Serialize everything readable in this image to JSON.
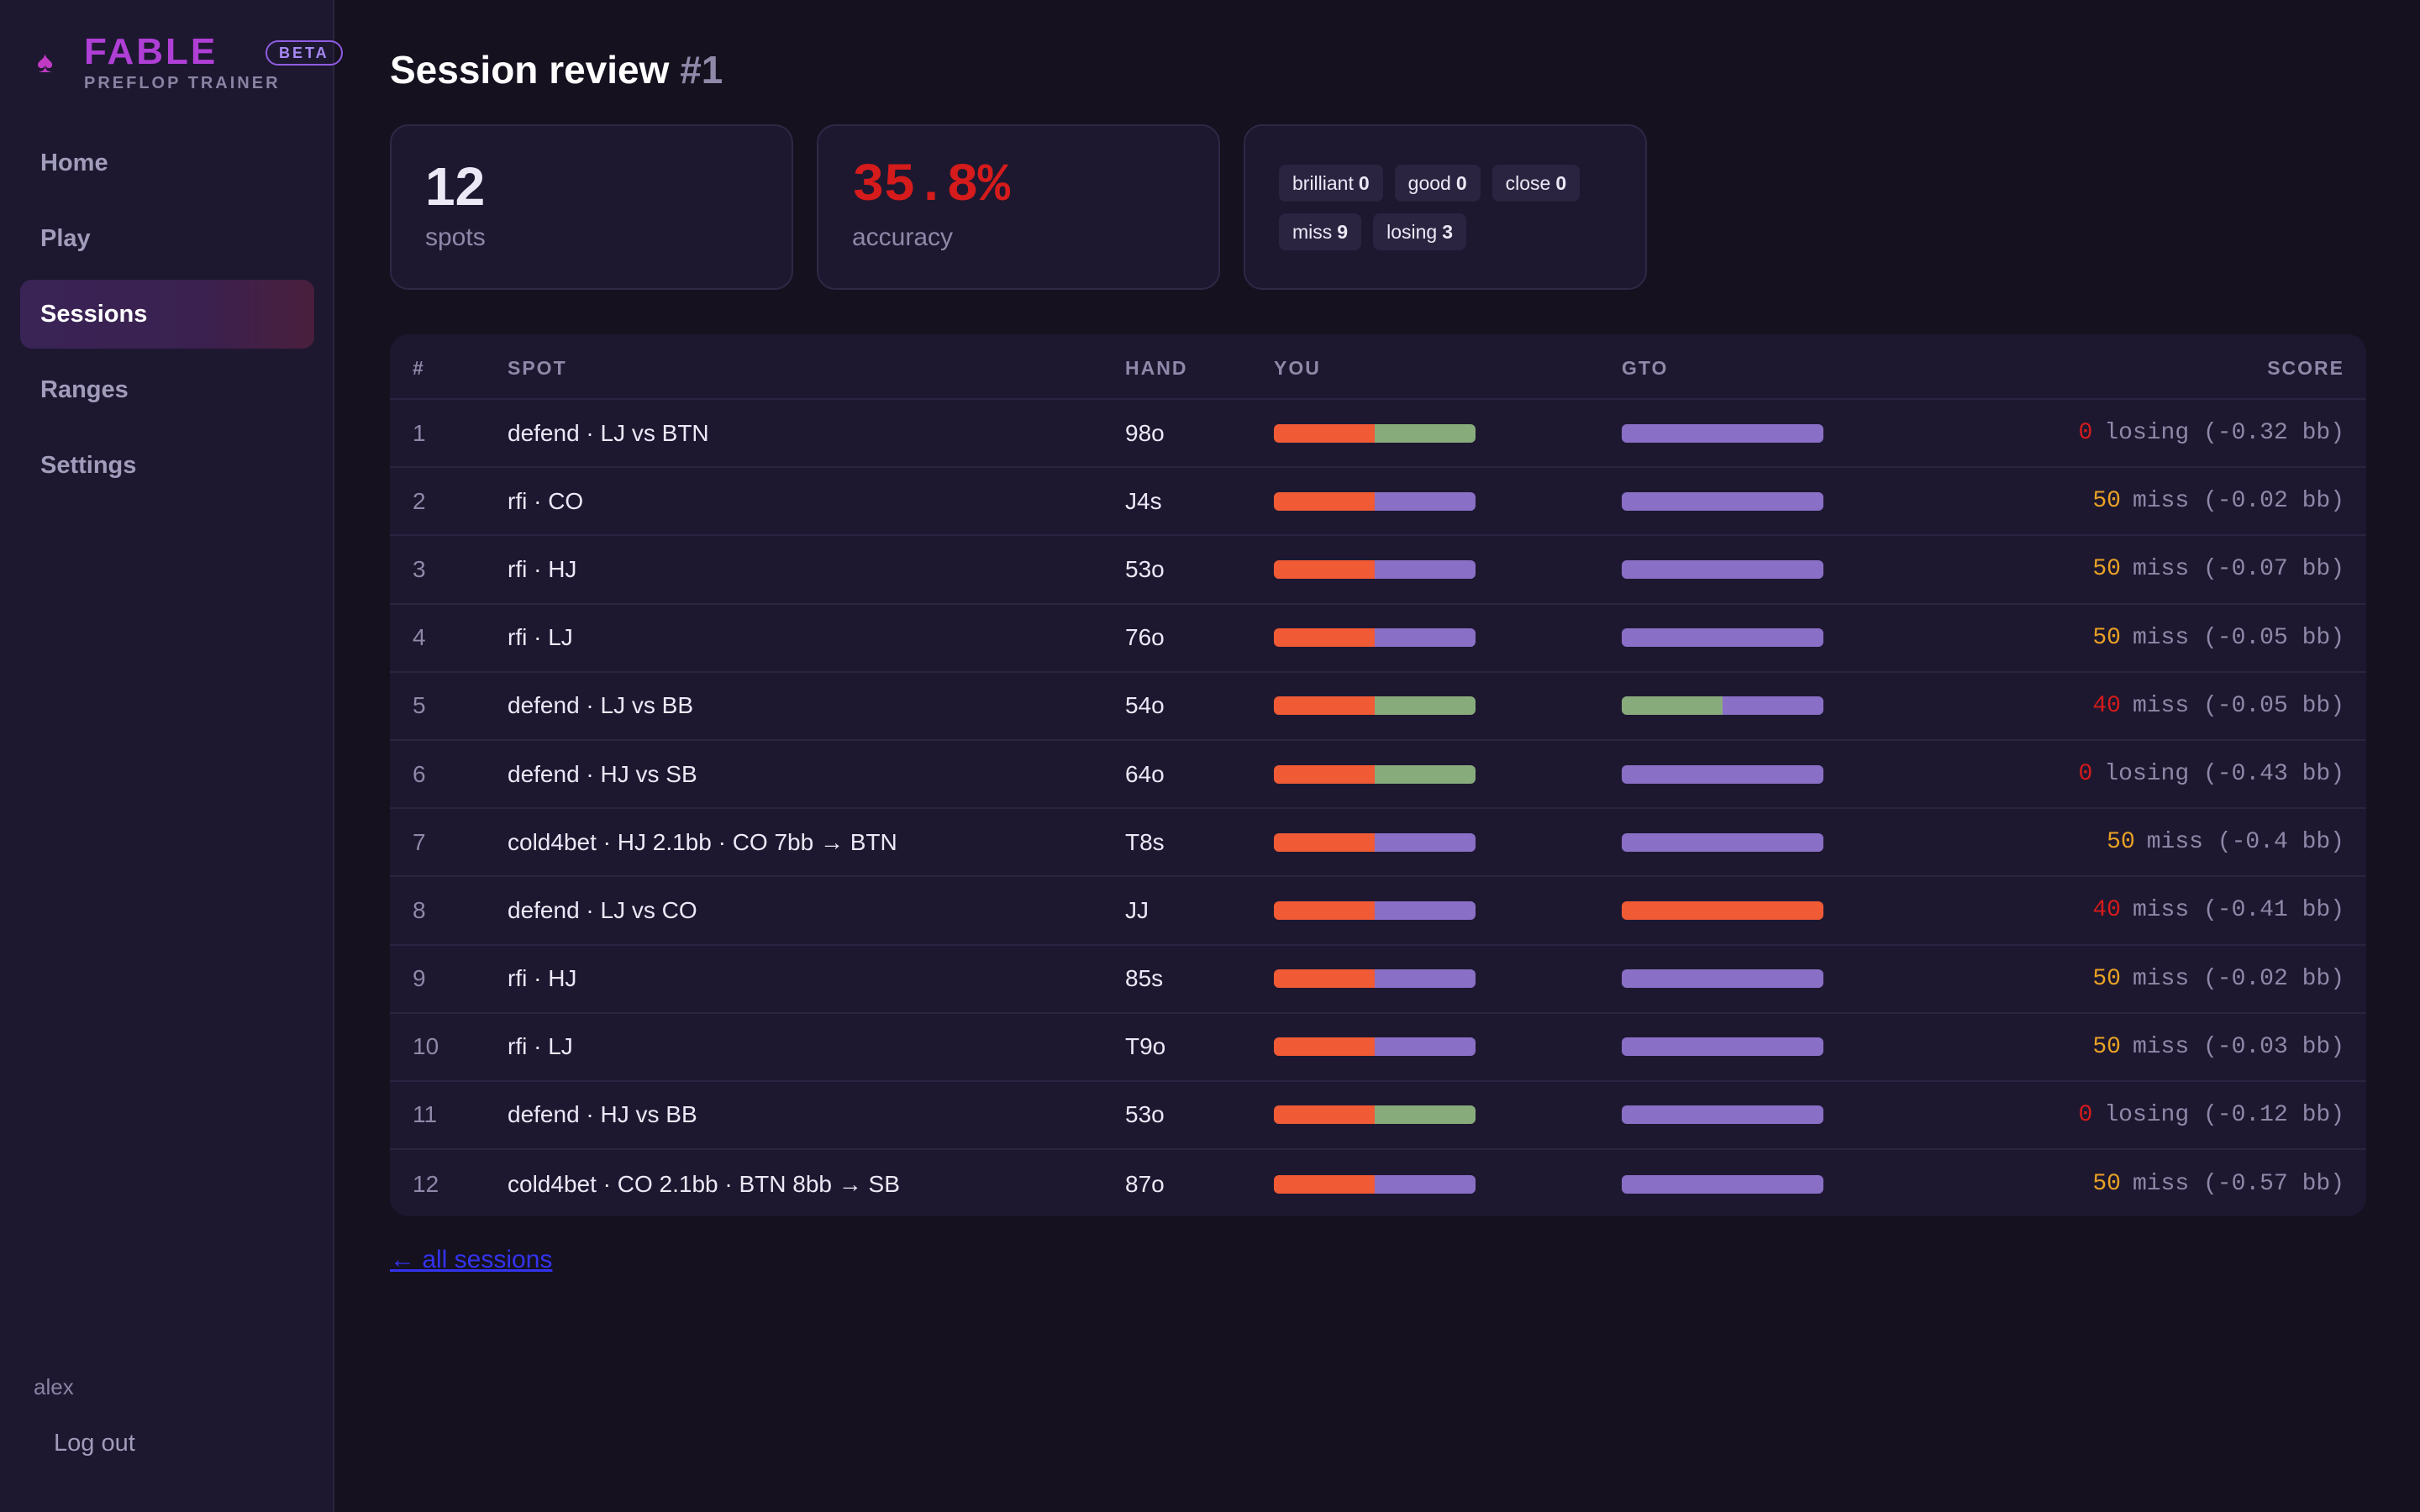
{
  "brand": {
    "name": "FABLE",
    "badge": "BETA",
    "subtitle": "PREFLOP TRAINER"
  },
  "nav": [
    "Home",
    "Play",
    "Sessions",
    "Ranges",
    "Settings"
  ],
  "nav_active_index": 2,
  "user": {
    "name": "alex",
    "logout": "Log out"
  },
  "page": {
    "title": "Session review",
    "session_number": "#1"
  },
  "stats": {
    "spots_value": "12",
    "spots_label": "spots",
    "accuracy_value": "35.8%",
    "accuracy_label": "accuracy"
  },
  "chips": [
    {
      "label": "brilliant",
      "count": "0"
    },
    {
      "label": "good",
      "count": "0"
    },
    {
      "label": "close",
      "count": "0"
    },
    {
      "label": "miss",
      "count": "9"
    },
    {
      "label": "losing",
      "count": "3"
    }
  ],
  "table": {
    "headers": {
      "num": "#",
      "spot": "SPOT",
      "hand": "HAND",
      "you": "YOU",
      "gto": "GTO",
      "score": "SCORE"
    },
    "rows": [
      {
        "num": "1",
        "spot": "defend · LJ vs BTN",
        "hand": "98o",
        "you": [
          {
            "c": "#f05a35",
            "f": 0.5
          },
          {
            "c": "#88ab7c",
            "f": 0.5
          }
        ],
        "gto": [
          {
            "c": "#8a6fc7",
            "f": 1
          }
        ],
        "score": "0",
        "score_color": "#d51b1b",
        "verdict": "losing (-0.32 bb)"
      },
      {
        "num": "2",
        "spot": "rfi · CO",
        "hand": "J4s",
        "you": [
          {
            "c": "#f05a35",
            "f": 0.5
          },
          {
            "c": "#8a6fc7",
            "f": 0.5
          }
        ],
        "gto": [
          {
            "c": "#8a6fc7",
            "f": 1
          }
        ],
        "score": "50",
        "score_color": "#e8a125",
        "verdict": "miss (-0.02 bb)"
      },
      {
        "num": "3",
        "spot": "rfi · HJ",
        "hand": "53o",
        "you": [
          {
            "c": "#f05a35",
            "f": 0.5
          },
          {
            "c": "#8a6fc7",
            "f": 0.5
          }
        ],
        "gto": [
          {
            "c": "#8a6fc7",
            "f": 1
          }
        ],
        "score": "50",
        "score_color": "#e8a125",
        "verdict": "miss (-0.07 bb)"
      },
      {
        "num": "4",
        "spot": "rfi · LJ",
        "hand": "76o",
        "you": [
          {
            "c": "#f05a35",
            "f": 0.5
          },
          {
            "c": "#8a6fc7",
            "f": 0.5
          }
        ],
        "gto": [
          {
            "c": "#8a6fc7",
            "f": 1
          }
        ],
        "score": "50",
        "score_color": "#e8a125",
        "verdict": "miss (-0.05 bb)"
      },
      {
        "num": "5",
        "spot": "defend · LJ vs BB",
        "hand": "54o",
        "you": [
          {
            "c": "#f05a35",
            "f": 0.5
          },
          {
            "c": "#88ab7c",
            "f": 0.5
          }
        ],
        "gto": [
          {
            "c": "#88ab7c",
            "f": 0.5
          },
          {
            "c": "#8a6fc7",
            "f": 0.5
          }
        ],
        "score": "40",
        "score_color": "#d51b1b",
        "verdict": "miss (-0.05 bb)"
      },
      {
        "num": "6",
        "spot": "defend · HJ vs SB",
        "hand": "64o",
        "you": [
          {
            "c": "#f05a35",
            "f": 0.5
          },
          {
            "c": "#88ab7c",
            "f": 0.5
          }
        ],
        "gto": [
          {
            "c": "#8a6fc7",
            "f": 1
          }
        ],
        "score": "0",
        "score_color": "#d51b1b",
        "verdict": "losing (-0.43 bb)"
      },
      {
        "num": "7",
        "spot": "cold4bet · HJ 2.1bb · CO 7bb → BTN",
        "hand": "T8s",
        "you": [
          {
            "c": "#f05a35",
            "f": 0.5
          },
          {
            "c": "#8a6fc7",
            "f": 0.5
          }
        ],
        "gto": [
          {
            "c": "#8a6fc7",
            "f": 1
          }
        ],
        "score": "50",
        "score_color": "#e8a125",
        "verdict": "miss (-0.4 bb)"
      },
      {
        "num": "8",
        "spot": "defend · LJ vs CO",
        "hand": "JJ",
        "you": [
          {
            "c": "#f05a35",
            "f": 0.5
          },
          {
            "c": "#8a6fc7",
            "f": 0.5
          }
        ],
        "gto": [
          {
            "c": "#f05a35",
            "f": 1
          }
        ],
        "score": "40",
        "score_color": "#d51b1b",
        "verdict": "miss (-0.41 bb)"
      },
      {
        "num": "9",
        "spot": "rfi · HJ",
        "hand": "85s",
        "you": [
          {
            "c": "#f05a35",
            "f": 0.5
          },
          {
            "c": "#8a6fc7",
            "f": 0.5
          }
        ],
        "gto": [
          {
            "c": "#8a6fc7",
            "f": 1
          }
        ],
        "score": "50",
        "score_color": "#e8a125",
        "verdict": "miss (-0.02 bb)"
      },
      {
        "num": "10",
        "spot": "rfi · LJ",
        "hand": "T9o",
        "you": [
          {
            "c": "#f05a35",
            "f": 0.5
          },
          {
            "c": "#8a6fc7",
            "f": 0.5
          }
        ],
        "gto": [
          {
            "c": "#8a6fc7",
            "f": 1
          }
        ],
        "score": "50",
        "score_color": "#e8a125",
        "verdict": "miss (-0.03 bb)"
      },
      {
        "num": "11",
        "spot": "defend · HJ vs BB",
        "hand": "53o",
        "you": [
          {
            "c": "#f05a35",
            "f": 0.5
          },
          {
            "c": "#88ab7c",
            "f": 0.5
          }
        ],
        "gto": [
          {
            "c": "#8a6fc7",
            "f": 1
          }
        ],
        "score": "0",
        "score_color": "#d51b1b",
        "verdict": "losing (-0.12 bb)"
      },
      {
        "num": "12",
        "spot": "cold4bet · CO 2.1bb · BTN 8bb → SB",
        "hand": "87o",
        "you": [
          {
            "c": "#f05a35",
            "f": 0.5
          },
          {
            "c": "#8a6fc7",
            "f": 0.5
          }
        ],
        "gto": [
          {
            "c": "#8a6fc7",
            "f": 1
          }
        ],
        "score": "50",
        "score_color": "#e8a125",
        "verdict": "miss (-0.57 bb)"
      }
    ]
  },
  "back_link": "← all sessions"
}
